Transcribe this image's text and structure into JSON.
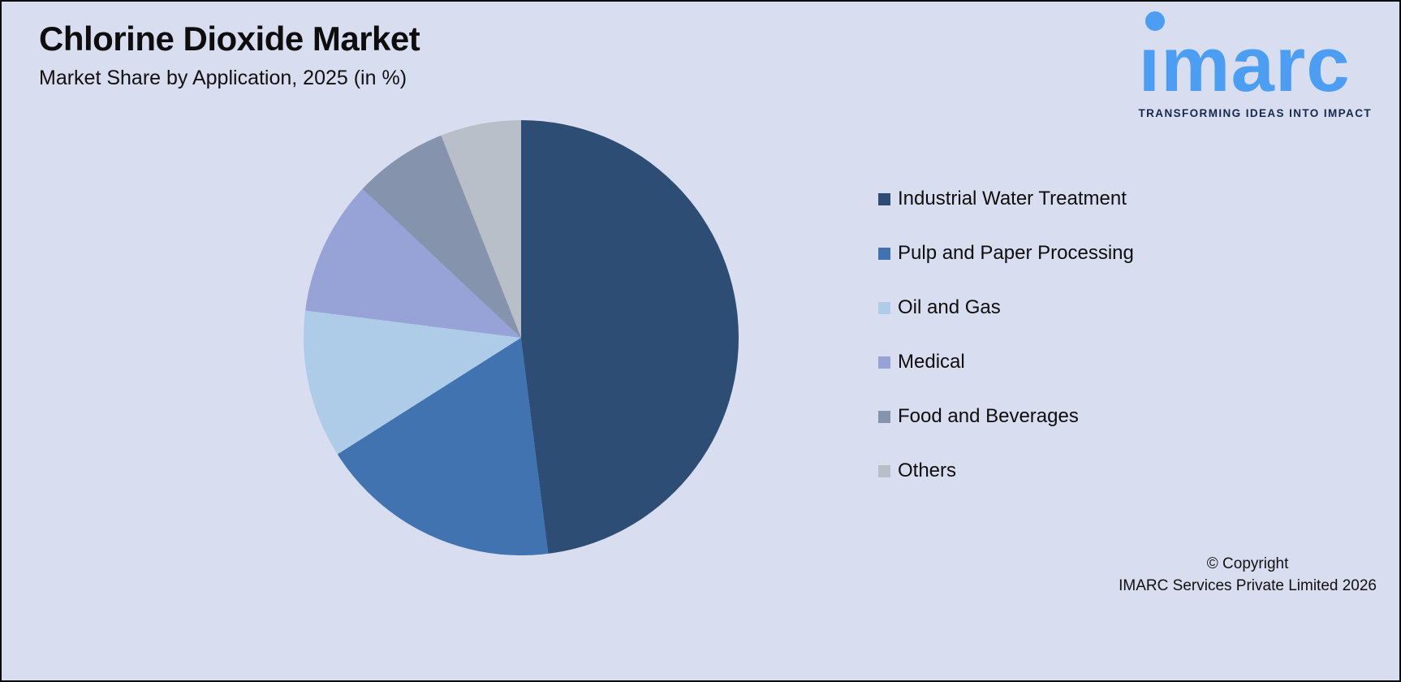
{
  "logo": {
    "brand": "imarc",
    "tagline": "TRANSFORMING IDEAS INTO IMPACT",
    "brand_color": "#4b9ef2",
    "tagline_color": "#16284b"
  },
  "chart_data": {
    "type": "pie",
    "title": "Chlorine Dioxide Market",
    "subtitle": "Market Share by Application, 2025 (in %)",
    "labels": [
      "Industrial Water Treatment",
      "Pulp and Paper Processing",
      "Oil and Gas",
      "Medical",
      "Food and Beverages",
      "Others"
    ],
    "values": [
      48,
      18,
      11,
      10,
      7,
      6
    ],
    "colors": [
      "#2e4d74",
      "#4273b1",
      "#aecbe8",
      "#97a3d7",
      "#8593ad",
      "#b9bfc8"
    ],
    "start_angle_deg": 0,
    "direction": "clockwise",
    "legend_position": "right",
    "background_color": "#d8def0"
  },
  "footer": {
    "copyright_line1": "© Copyright",
    "copyright_line2": "IMARC Services Private Limited 2026"
  }
}
